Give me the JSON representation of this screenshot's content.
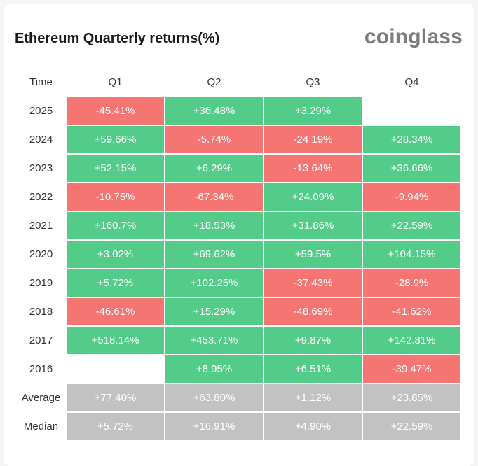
{
  "title": "Ethereum Quarterly returns(%)",
  "brand": "coinglass",
  "colors": {
    "positive": "#53cc8a",
    "negative": "#f57573",
    "summary": "#c2c2c2"
  },
  "chart_data": {
    "type": "table",
    "title": "Ethereum Quarterly returns(%)",
    "columns": [
      "Time",
      "Q1",
      "Q2",
      "Q3",
      "Q4"
    ],
    "rows": [
      {
        "label": "2025",
        "values": [
          "-45.41%",
          "+36.48%",
          "+3.29%",
          ""
        ]
      },
      {
        "label": "2024",
        "values": [
          "+59.66%",
          "-5.74%",
          "-24.19%",
          "+28.34%"
        ]
      },
      {
        "label": "2023",
        "values": [
          "+52.15%",
          "+6.29%",
          "-13.64%",
          "+36.66%"
        ]
      },
      {
        "label": "2022",
        "values": [
          "-10.75%",
          "-67.34%",
          "+24.09%",
          "-9.94%"
        ]
      },
      {
        "label": "2021",
        "values": [
          "+160.7%",
          "+18.53%",
          "+31.86%",
          "+22.59%"
        ]
      },
      {
        "label": "2020",
        "values": [
          "+3.02%",
          "+69.62%",
          "+59.5%",
          "+104.15%"
        ]
      },
      {
        "label": "2019",
        "values": [
          "+5.72%",
          "+102.25%",
          "-37.43%",
          "-28.9%"
        ]
      },
      {
        "label": "2018",
        "values": [
          "-46.61%",
          "+15.29%",
          "-48.69%",
          "-41.62%"
        ]
      },
      {
        "label": "2017",
        "values": [
          "+518.14%",
          "+453.71%",
          "+9.87%",
          "+142.81%"
        ]
      },
      {
        "label": "2016",
        "values": [
          "",
          "+8.95%",
          "+6.51%",
          "-39.47%"
        ]
      }
    ],
    "summary": [
      {
        "label": "Average",
        "values": [
          "+77.40%",
          "+63.80%",
          "+1.12%",
          "+23.85%"
        ]
      },
      {
        "label": "Median",
        "values": [
          "+5.72%",
          "+16.91%",
          "+4.90%",
          "+22.59%"
        ]
      }
    ]
  }
}
